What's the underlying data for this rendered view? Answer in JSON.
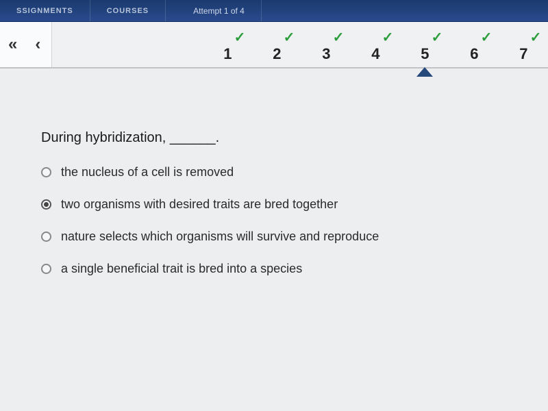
{
  "topbar": {
    "assignments": "SSIGNMENTS",
    "courses": "COURSES",
    "attempt": "Attempt 1 of 4"
  },
  "nav": {
    "first_arrow": "«",
    "prev_arrow": "‹",
    "tabs": [
      {
        "num": "1",
        "checked": true,
        "active": false
      },
      {
        "num": "2",
        "checked": true,
        "active": false
      },
      {
        "num": "3",
        "checked": true,
        "active": false
      },
      {
        "num": "4",
        "checked": true,
        "active": false
      },
      {
        "num": "5",
        "checked": true,
        "active": true
      },
      {
        "num": "6",
        "checked": true,
        "active": false
      },
      {
        "num": "7",
        "checked": true,
        "active": false
      }
    ]
  },
  "question": {
    "text": "During hybridization, ______.",
    "options": [
      {
        "label": "the nucleus of a cell is removed",
        "selected": false
      },
      {
        "label": "two organisms with desired traits are bred together",
        "selected": true
      },
      {
        "label": "nature selects which organisms will survive and reproduce",
        "selected": false
      },
      {
        "label": "a single beneficial trait is bred into a species",
        "selected": false
      }
    ]
  },
  "colors": {
    "topbar_bg": "#1a3a6e",
    "check_color": "#2a9d3a",
    "body_bg": "#e8e9eb"
  }
}
